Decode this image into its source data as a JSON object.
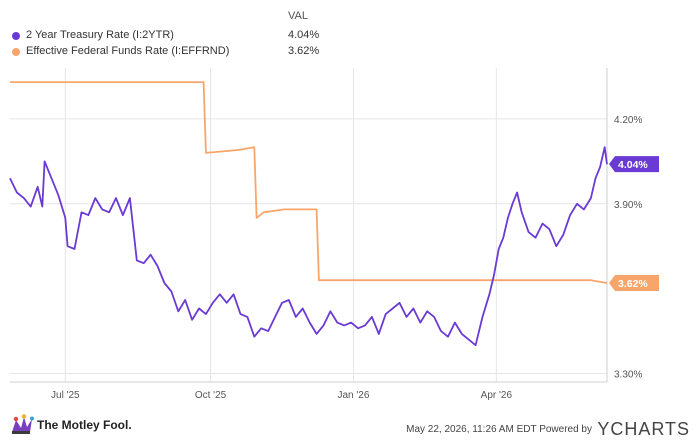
{
  "legend": {
    "header": "VAL",
    "items": [
      {
        "name": "2 Year Treasury Rate (I:2YTR)",
        "value": "4.04%"
      },
      {
        "name": "Effective Federal Funds Rate (I:EFFRND)",
        "value": "3.62%"
      }
    ]
  },
  "footer": {
    "brand": "The Motley Fool.",
    "timestamp": "May 22, 2026, 11:26 AM EDT",
    "powered_by": "Powered by",
    "provider": "YCHARTS"
  },
  "colors": {
    "treasury": "#6a3ad4",
    "fedfunds": "#f8a56b",
    "grid": "#e6e6e6",
    "axis_text": "#555555"
  },
  "chart_data": {
    "type": "line",
    "x_ticks": [
      "Jul '25",
      "Oct '25",
      "Jan '26",
      "Apr '26"
    ],
    "x_tick_index": [
      24,
      87,
      149,
      211
    ],
    "y_ticks": [
      {
        "value": 4.2,
        "label": "4.20%"
      },
      {
        "value": 3.9,
        "label": "3.90%"
      },
      {
        "value": 3.3,
        "label": "3.30%"
      }
    ],
    "ylim": [
      3.27,
      4.38
    ],
    "x_count": 260,
    "grid": true,
    "series": [
      {
        "name": "2 Year Treasury Rate (I:2YTR)",
        "color": "#6a3ad4",
        "end_label": "4.04%",
        "points": [
          [
            0,
            3.99
          ],
          [
            3,
            3.94
          ],
          [
            6,
            3.92
          ],
          [
            9,
            3.89
          ],
          [
            12,
            3.96
          ],
          [
            14,
            3.89
          ],
          [
            15,
            4.05
          ],
          [
            18,
            3.99
          ],
          [
            21,
            3.93
          ],
          [
            24,
            3.85
          ],
          [
            25,
            3.75
          ],
          [
            28,
            3.74
          ],
          [
            31,
            3.87
          ],
          [
            34,
            3.86
          ],
          [
            37,
            3.92
          ],
          [
            40,
            3.88
          ],
          [
            43,
            3.87
          ],
          [
            46,
            3.92
          ],
          [
            49,
            3.86
          ],
          [
            52,
            3.92
          ],
          [
            55,
            3.7
          ],
          [
            58,
            3.69
          ],
          [
            61,
            3.72
          ],
          [
            64,
            3.68
          ],
          [
            67,
            3.62
          ],
          [
            70,
            3.59
          ],
          [
            73,
            3.52
          ],
          [
            76,
            3.56
          ],
          [
            79,
            3.49
          ],
          [
            82,
            3.53
          ],
          [
            85,
            3.51
          ],
          [
            88,
            3.55
          ],
          [
            91,
            3.58
          ],
          [
            94,
            3.55
          ],
          [
            97,
            3.58
          ],
          [
            100,
            3.51
          ],
          [
            103,
            3.5
          ],
          [
            106,
            3.43
          ],
          [
            109,
            3.46
          ],
          [
            112,
            3.45
          ],
          [
            115,
            3.5
          ],
          [
            118,
            3.55
          ],
          [
            121,
            3.56
          ],
          [
            124,
            3.5
          ],
          [
            127,
            3.53
          ],
          [
            130,
            3.48
          ],
          [
            133,
            3.44
          ],
          [
            136,
            3.47
          ],
          [
            139,
            3.52
          ],
          [
            142,
            3.48
          ],
          [
            145,
            3.47
          ],
          [
            148,
            3.48
          ],
          [
            151,
            3.46
          ],
          [
            154,
            3.47
          ],
          [
            157,
            3.5
          ],
          [
            160,
            3.44
          ],
          [
            163,
            3.51
          ],
          [
            166,
            3.53
          ],
          [
            169,
            3.55
          ],
          [
            172,
            3.5
          ],
          [
            175,
            3.53
          ],
          [
            178,
            3.48
          ],
          [
            181,
            3.52
          ],
          [
            184,
            3.5
          ],
          [
            187,
            3.45
          ],
          [
            190,
            3.43
          ],
          [
            193,
            3.48
          ],
          [
            196,
            3.44
          ],
          [
            199,
            3.42
          ],
          [
            202,
            3.4
          ],
          [
            205,
            3.5
          ],
          [
            208,
            3.58
          ],
          [
            210,
            3.65
          ],
          [
            212,
            3.74
          ],
          [
            214,
            3.78
          ],
          [
            216,
            3.85
          ],
          [
            218,
            3.9
          ],
          [
            220,
            3.94
          ],
          [
            222,
            3.87
          ],
          [
            225,
            3.8
          ],
          [
            228,
            3.78
          ],
          [
            231,
            3.83
          ],
          [
            234,
            3.81
          ],
          [
            237,
            3.75
          ],
          [
            240,
            3.79
          ],
          [
            243,
            3.86
          ],
          [
            246,
            3.9
          ],
          [
            249,
            3.88
          ],
          [
            252,
            3.92
          ],
          [
            254,
            3.99
          ],
          [
            256,
            4.03
          ],
          [
            258,
            4.1
          ],
          [
            259,
            4.04
          ]
        ]
      },
      {
        "name": "Effective Federal Funds Rate (I:EFFRND)",
        "color": "#f8a56b",
        "end_label": "3.62%",
        "points": [
          [
            0,
            4.33
          ],
          [
            84,
            4.33
          ],
          [
            85,
            4.08
          ],
          [
            99,
            4.09
          ],
          [
            106,
            4.1
          ],
          [
            107,
            3.85
          ],
          [
            110,
            3.87
          ],
          [
            119,
            3.88
          ],
          [
            133,
            3.88
          ],
          [
            134,
            3.63
          ],
          [
            252,
            3.63
          ],
          [
            259,
            3.62
          ]
        ]
      }
    ]
  }
}
